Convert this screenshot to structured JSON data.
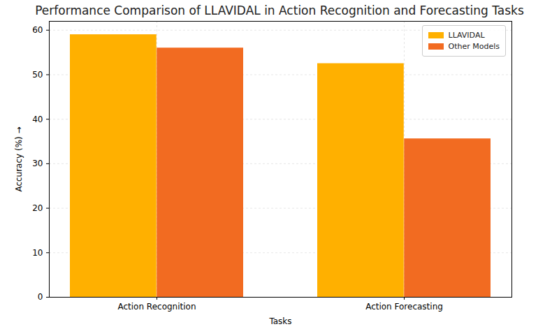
{
  "chart_data": {
    "type": "bar",
    "title": "Performance Comparison of LLAVIDAL in Action Recognition and Forecasting Tasks",
    "x_label": "Tasks",
    "y_label": "Accuracy (%)",
    "categories": [
      "Action Recognition",
      "Action Forecasting"
    ],
    "series": [
      {
        "name": "LLAVIDAL",
        "color": "#FFB000",
        "values": [
          59.0,
          52.5
        ]
      },
      {
        "name": "Other Models",
        "color": "#F26B21",
        "values": [
          56.0,
          35.6
        ]
      }
    ],
    "ylim": [
      0,
      62
    ],
    "yticks": [
      0,
      10,
      20,
      30,
      40,
      50,
      60
    ],
    "grid": true,
    "legend": "upper right"
  }
}
